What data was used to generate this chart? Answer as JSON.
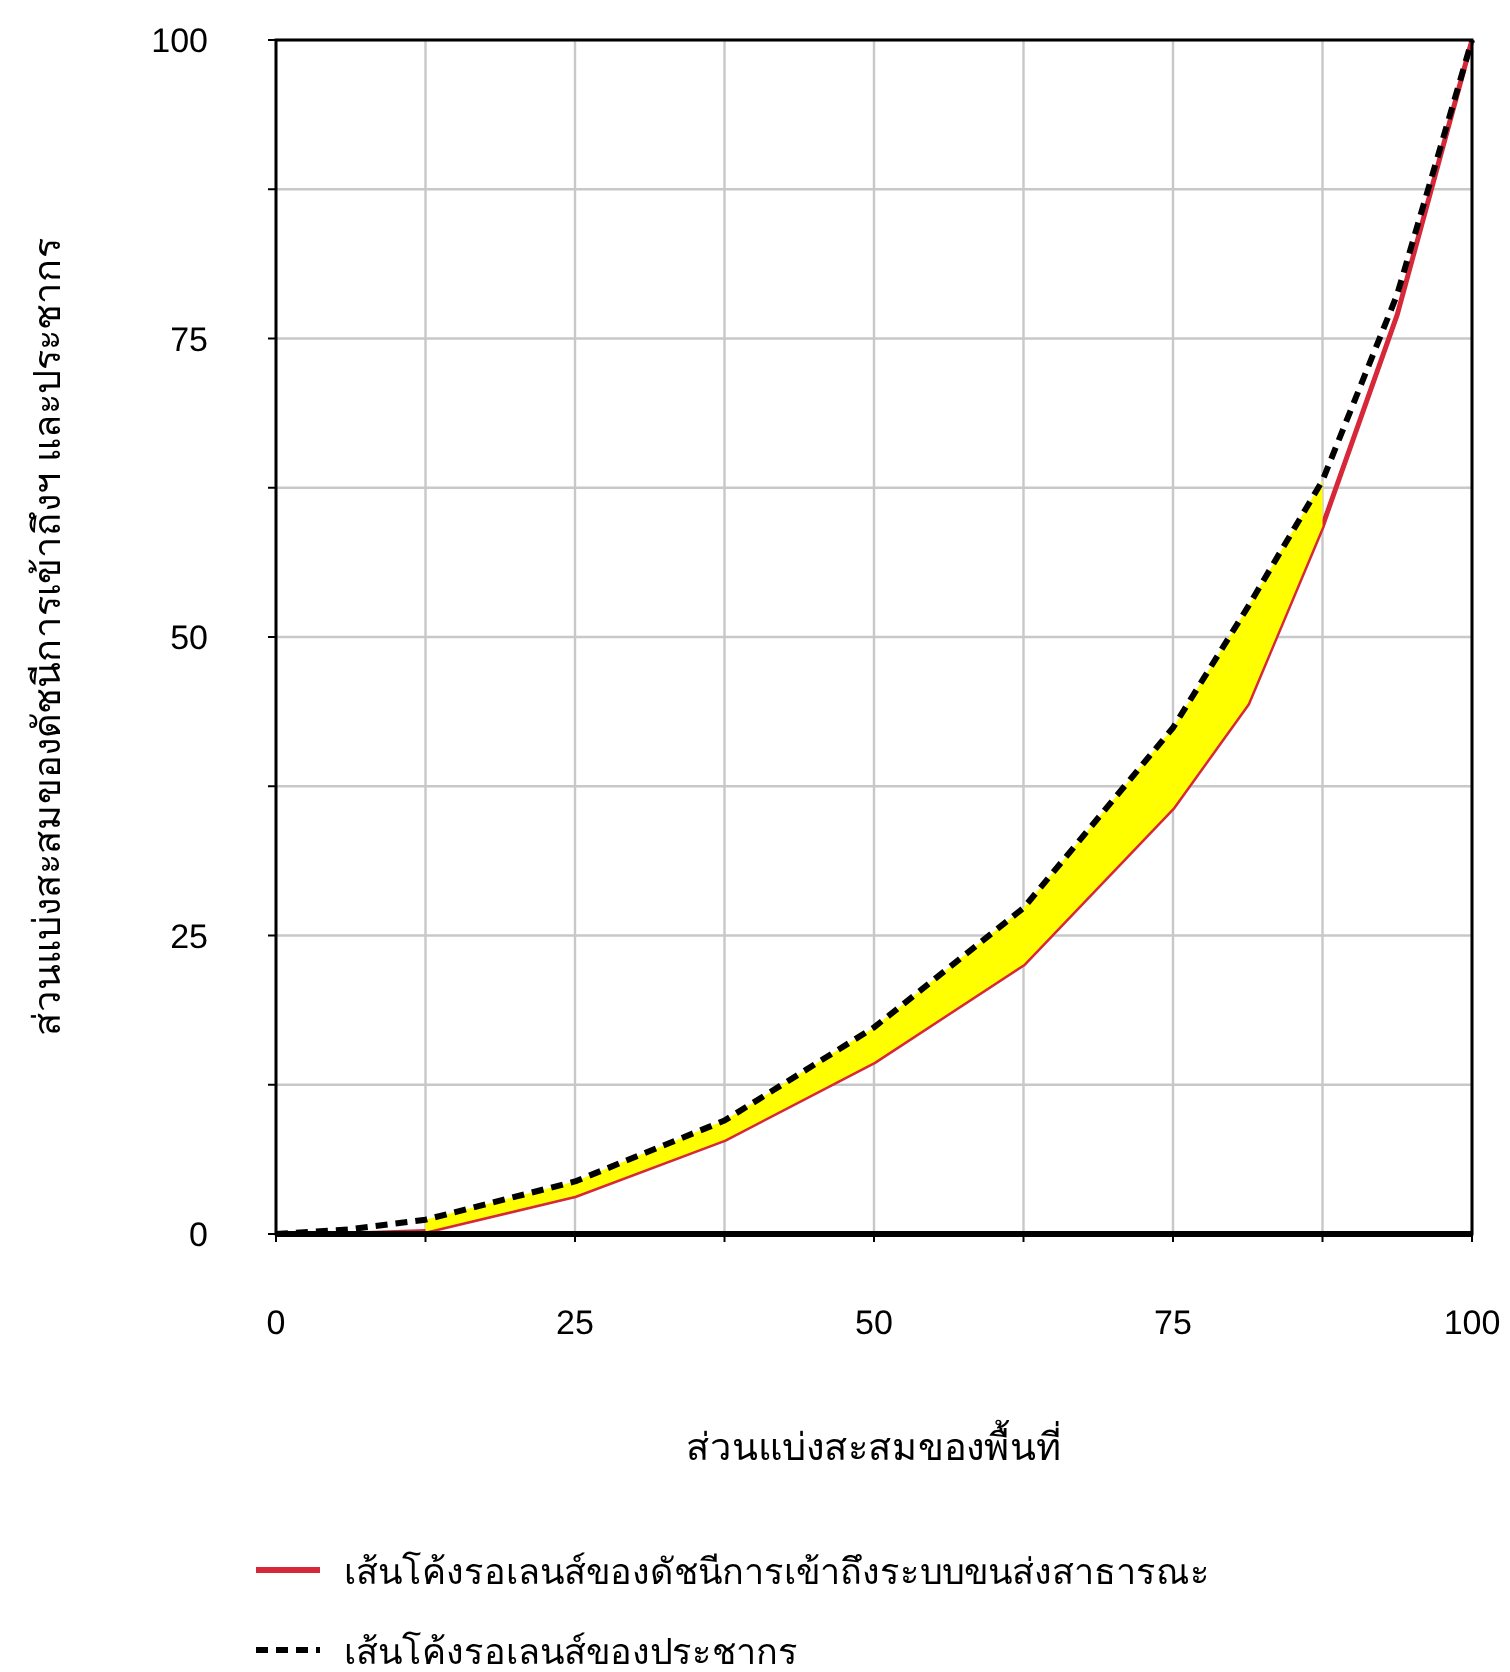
{
  "chart_data": {
    "type": "line",
    "xlabel": "ส่วนแบ่งสะสมของพื้นที่",
    "ylabel": "ส่วนแบ่งสะสมของดัชนีการเข้าถึงฯ และประชากร",
    "x": [
      0,
      6.25,
      12.5,
      25,
      37.5,
      50,
      62.5,
      75,
      81.25,
      87.5,
      93.75,
      100
    ],
    "series": [
      {
        "name": "เส้นโค้งรอเลนส์ของดัชนีการเข้าถึงระบบขนส่งสาธารณะ",
        "color": "#d62839",
        "line_style": "solid",
        "values": [
          0,
          0,
          0.2,
          3.2,
          7.9,
          14.4,
          22.6,
          35.7,
          44.4,
          59.3,
          77,
          100
        ]
      },
      {
        "name": "เส้นโค้งรอเลนส์ของประชากร",
        "color": "#000000",
        "line_style": "dashed",
        "values": [
          0,
          0.4,
          1.2,
          4.4,
          9.5,
          17.3,
          27.3,
          42.4,
          52.5,
          63.1,
          78.7,
          100
        ],
        "lower": [
          null,
          null,
          0.2,
          3.2,
          7.9,
          14.4,
          22.6,
          35.7,
          44.4,
          59.3,
          null,
          null
        ],
        "upper": [
          null,
          null,
          1.2,
          4.4,
          9.5,
          17.3,
          27.3,
          42.4,
          52.5,
          63.1,
          null,
          null
        ]
      }
    ],
    "xlim": [
      0,
      100
    ],
    "ylim": [
      0,
      100
    ],
    "xticks": [
      0,
      {
        "value": 12.5,
        "label": null
      },
      25,
      {
        "value": 37.5,
        "label": null
      },
      50,
      {
        "value": 62.5,
        "label": null
      },
      75,
      {
        "value": 87.5,
        "label": null
      },
      100
    ],
    "yticks": [
      0,
      {
        "value": 12.5,
        "label": null
      },
      25,
      {
        "value": 37.5,
        "label": null
      },
      50,
      {
        "value": 62.5,
        "label": null
      },
      75,
      {
        "value": 87.5,
        "label": null
      },
      100
    ],
    "grid": true,
    "legend": "bottom"
  }
}
